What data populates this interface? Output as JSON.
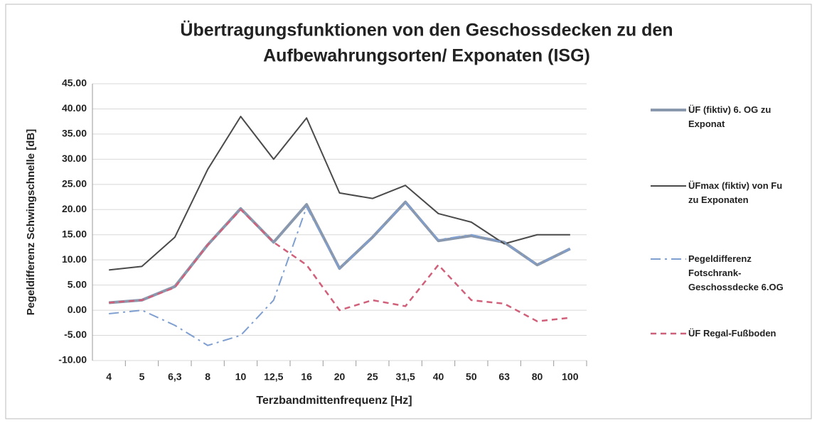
{
  "chart_data": {
    "type": "line",
    "title": [
      "Übertragungsfunktionen von den Geschossdecken zu den",
      "Aufbewahrungsorten/ Exponaten (ISG)"
    ],
    "x_label": "Terzbandmittenfrequenz [Hz]",
    "y_label": "Pegeldifferenz Schwingschnelle [dB]",
    "categories": [
      "4",
      "5",
      "6,3",
      "8",
      "10",
      "12,5",
      "16",
      "20",
      "25",
      "31,5",
      "40",
      "50",
      "63",
      "80",
      "100"
    ],
    "ylim": [
      -10,
      45
    ],
    "yticks": [
      {
        "value": -10,
        "label": "-10.00"
      },
      {
        "value": -5,
        "label": "-5.00"
      },
      {
        "value": 0,
        "label": "0.00"
      },
      {
        "value": 5,
        "label": "5.00"
      },
      {
        "value": 10,
        "label": "10.00"
      },
      {
        "value": 15,
        "label": "15.00"
      },
      {
        "value": 20,
        "label": "20.00"
      },
      {
        "value": 25,
        "label": "25.00"
      },
      {
        "value": 30,
        "label": "30.00"
      },
      {
        "value": 35,
        "label": "35.00"
      },
      {
        "value": 40,
        "label": "40.00"
      },
      {
        "value": 45,
        "label": "45.00"
      }
    ],
    "grid": true,
    "legend": "right",
    "series": [
      {
        "name": "ÜF (fiktiv) 6. OG zu Exponat",
        "color": "#8a98ad",
        "width": 4,
        "dash": "solid",
        "values": [
          1.5,
          2,
          4.7,
          13,
          20.2,
          13.5,
          21,
          8.3,
          14.5,
          21.5,
          13.8,
          14.8,
          13.5,
          9,
          12.2
        ]
      },
      {
        "name": "ÜFmax (fiktiv) von Fu zu Exponaten",
        "color": "#4a4a4a",
        "width": 2,
        "dash": "solid",
        "values": [
          8,
          8.7,
          14.5,
          28,
          38.5,
          30,
          38.2,
          23.3,
          22.2,
          24.8,
          19.2,
          17.5,
          13.2,
          15,
          15
        ]
      },
      {
        "name": "Pegeldifferenz Fotschrank-Geschossdecke 6.OG",
        "color": "#7f9fd0",
        "width": 2,
        "dash": "dashdot",
        "values": [
          -0.7,
          0,
          -3,
          -7,
          -5,
          2,
          20.5,
          8.3,
          14.5,
          21.5,
          14,
          15,
          13.5,
          9,
          12.2
        ]
      },
      {
        "name": "ÜF Regal-Fußboden",
        "color": "#d0607a",
        "width": 2.5,
        "dash": "dash",
        "values": [
          1.5,
          2,
          4.5,
          13,
          20,
          13.5,
          9,
          0,
          2,
          0.8,
          9,
          2,
          1.3,
          -2.2,
          -1.5
        ]
      }
    ]
  }
}
